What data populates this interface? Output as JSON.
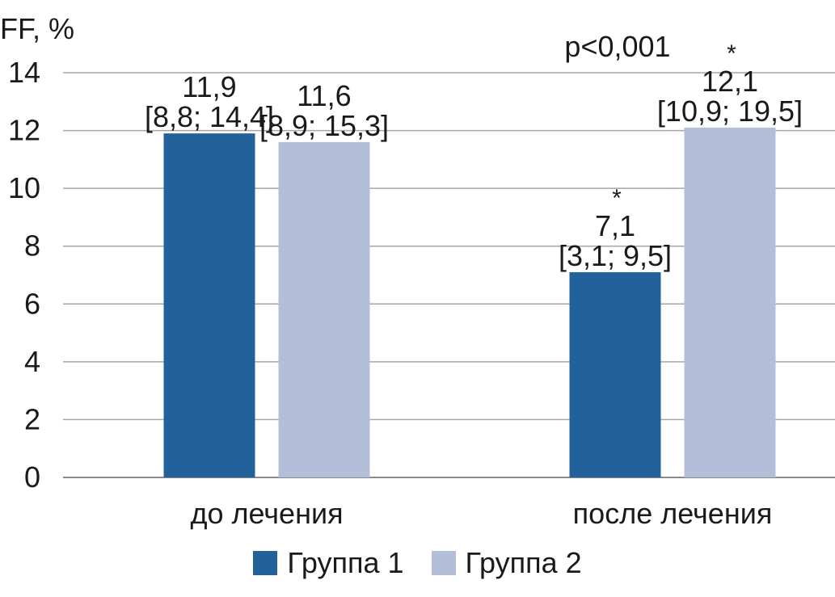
{
  "chart_data": {
    "type": "bar",
    "ylabel": "FF, %",
    "ylim": [
      0,
      14
    ],
    "yticks": [
      0,
      2,
      4,
      6,
      8,
      10,
      12,
      14
    ],
    "grid": true,
    "legend_position": "bottom",
    "categories": [
      "до лечения",
      "после лечения"
    ],
    "series": [
      {
        "name": "Группа 1",
        "color": "#23619a",
        "values": [
          11.9,
          7.1
        ],
        "value_labels": [
          "11,9",
          "7,1"
        ],
        "range_labels": [
          "[8,8; 14,4]",
          "[3,1; 9,5]"
        ],
        "markers": [
          "",
          "*"
        ]
      },
      {
        "name": "Группа 2",
        "color": "#b3bfd8",
        "values": [
          11.6,
          12.1
        ],
        "value_labels": [
          "11,6",
          "12,1"
        ],
        "range_labels": [
          "[8,9; 15,3]",
          "[10,9; 19,5]"
        ],
        "markers": [
          "",
          "*"
        ]
      }
    ],
    "annotations": [
      {
        "text": "p<0,001",
        "category": "после лечения"
      }
    ]
  }
}
